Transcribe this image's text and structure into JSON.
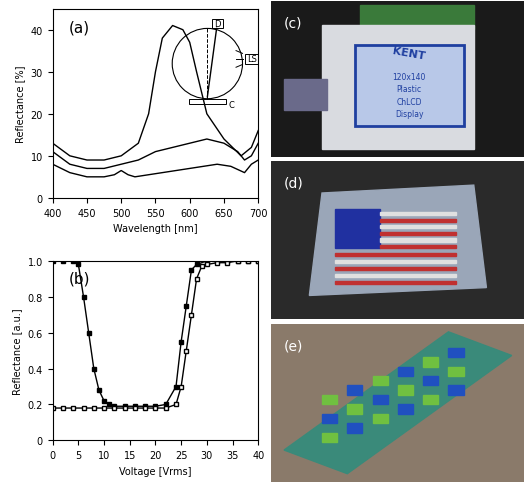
{
  "chart_data": [
    {
      "type": "line",
      "panel": "(a)",
      "x_label": "Wavelength [nm]",
      "y_label": "Reflectance [%]",
      "xlim": [
        400,
        700
      ],
      "xticks": [
        400,
        450,
        500,
        550,
        600,
        650,
        700
      ],
      "ylim": [
        0,
        45
      ],
      "yticks": [
        0,
        10,
        20,
        30,
        40
      ],
      "inset_labels": {
        "detector": "D",
        "light_source": "LS",
        "cell": "C"
      },
      "series": [
        {
          "color": "#000000",
          "line_style": "solid",
          "x": [
            400,
            425,
            450,
            475,
            500,
            525,
            540,
            550,
            560,
            575,
            590,
            600,
            610,
            625,
            650,
            675,
            690,
            700
          ],
          "values": [
            13,
            10,
            9,
            9,
            10,
            13,
            20,
            30,
            38,
            41,
            40,
            37,
            30,
            20,
            14,
            10,
            12,
            16
          ]
        },
        {
          "color": "#000000",
          "line_style": "solid",
          "x": [
            400,
            425,
            450,
            475,
            500,
            525,
            550,
            575,
            600,
            625,
            650,
            670,
            680,
            690,
            700
          ],
          "values": [
            11,
            8,
            7,
            7,
            8,
            9,
            11,
            12,
            13,
            14,
            13,
            11,
            9,
            10,
            13
          ]
        },
        {
          "color": "#000000",
          "line_style": "solid",
          "x": [
            400,
            425,
            450,
            475,
            490,
            500,
            510,
            520,
            540,
            560,
            600,
            640,
            660,
            680,
            690,
            700
          ],
          "values": [
            8,
            6,
            5,
            5,
            5.5,
            6.5,
            5.5,
            5,
            5.5,
            6,
            7,
            8,
            7.5,
            6,
            8,
            9
          ]
        }
      ]
    },
    {
      "type": "line",
      "panel": "(b)",
      "x_label": "Voltage [Vrms]",
      "y_label": "Reflectance [a.u.]",
      "xlim": [
        0,
        40
      ],
      "xticks": [
        0,
        5,
        10,
        15,
        20,
        25,
        30,
        35,
        40
      ],
      "ylim": [
        0,
        1
      ],
      "yticks": [
        0,
        0.2,
        0.4,
        0.6,
        0.8,
        {
          "value": 1,
          "label": "1.0"
        }
      ],
      "series": [
        {
          "color": "#000000",
          "marker": "square",
          "line_style": "solid",
          "x": [
            0,
            2,
            4,
            5,
            6,
            7,
            8,
            9,
            10,
            11,
            12,
            14,
            16,
            18,
            20,
            22,
            24,
            25,
            26,
            27,
            28,
            30,
            32,
            34,
            36,
            38,
            40
          ],
          "values": [
            1,
            1,
            1,
            0.98,
            0.8,
            0.6,
            0.4,
            0.28,
            0.22,
            0.2,
            0.19,
            0.19,
            0.19,
            0.19,
            0.19,
            0.2,
            0.3,
            0.55,
            0.75,
            0.95,
            0.98,
            1,
            1,
            1,
            1,
            1,
            1
          ]
        },
        {
          "color": "#000000",
          "marker": "open_square",
          "line_style": "solid",
          "x": [
            0,
            2,
            4,
            6,
            8,
            10,
            12,
            14,
            16,
            18,
            20,
            22,
            24,
            25,
            26,
            27,
            28,
            29,
            30,
            32,
            34,
            36,
            38,
            40
          ],
          "values": [
            0.18,
            0.18,
            0.18,
            0.18,
            0.18,
            0.18,
            0.18,
            0.18,
            0.18,
            0.18,
            0.18,
            0.18,
            0.2,
            0.3,
            0.5,
            0.7,
            0.9,
            0.97,
            0.98,
            0.99,
            0.99,
            1,
            1,
            1
          ]
        }
      ]
    }
  ],
  "photos": [
    {
      "panel": "(c)",
      "texts": [
        "KENT",
        "120x140",
        "Plastic",
        "ChLCD",
        "Display"
      ]
    },
    {
      "panel": "(d)"
    },
    {
      "panel": "(e)"
    }
  ]
}
